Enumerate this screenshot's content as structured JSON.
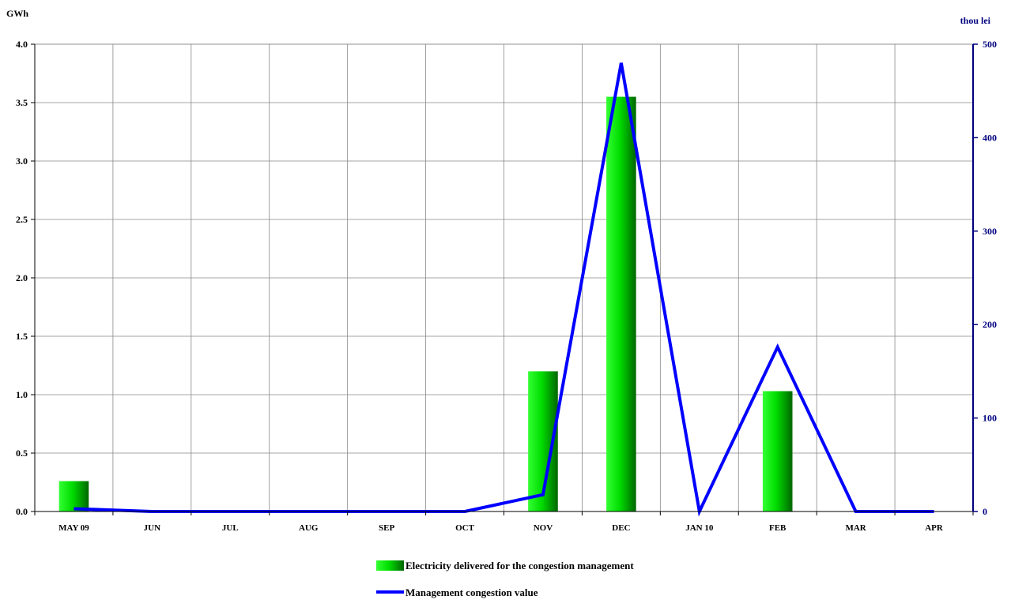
{
  "chart_data": {
    "type": "bar",
    "categories": [
      "MAY 09",
      "JUN",
      "JUL",
      "AUG",
      "SEP",
      "OCT",
      "NOV",
      "DEC",
      "JAN 10",
      "FEB",
      "MAR",
      "APR"
    ],
    "series": [
      {
        "name": "Electricity delivered for the congestion management",
        "type": "bar",
        "axis": "left",
        "values": [
          0.26,
          0,
          0,
          0,
          0,
          0,
          1.2,
          3.55,
          0,
          1.03,
          0,
          0
        ],
        "color": "#00cc00"
      },
      {
        "name": "Management congestion value",
        "type": "line",
        "axis": "right",
        "values": [
          3,
          0,
          0,
          0,
          0,
          0,
          18,
          480,
          0,
          176,
          0,
          0
        ],
        "color": "#0000ff"
      }
    ],
    "left_axis": {
      "unit": "GWh",
      "ylim": [
        0,
        4.0
      ],
      "ticks": [
        "0.0",
        "0.5",
        "1.0",
        "1.5",
        "2.0",
        "2.5",
        "3.0",
        "3.5",
        "4.0"
      ]
    },
    "right_axis": {
      "unit": "thou lei",
      "ylim": [
        0,
        500
      ],
      "ticks": [
        "0",
        "100",
        "200",
        "300",
        "400",
        "500"
      ],
      "color": "#000080"
    },
    "grid": true,
    "legend_position": "bottom-center"
  }
}
